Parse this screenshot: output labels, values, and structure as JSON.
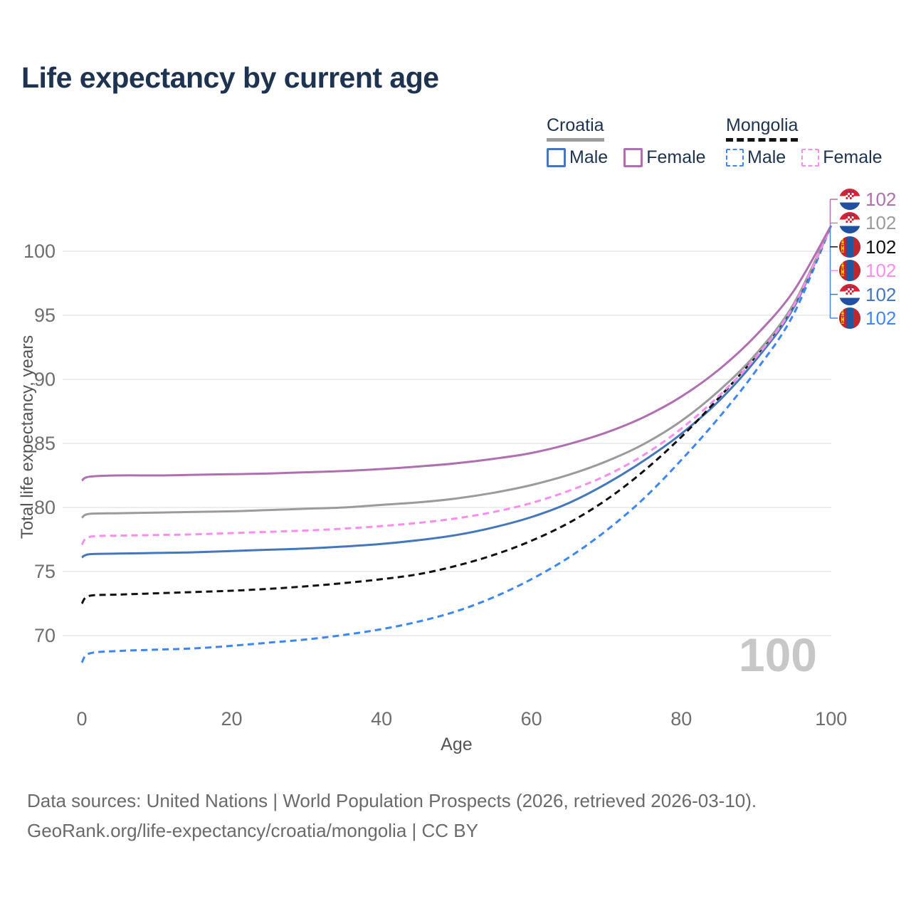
{
  "title": "Life expectancy by current age",
  "legend": {
    "croatia": {
      "title": "Croatia",
      "male": "Male",
      "female": "Female"
    },
    "mongolia": {
      "title": "Mongolia",
      "male": "Male",
      "female": "Female"
    }
  },
  "watermark": "100",
  "footer": {
    "line1": "Data sources: United Nations | World Population Prospects (2026, retrieved 2026-03-10).",
    "line2": "GeoRank.org/life-expectancy/croatia/mongolia | CC BY"
  },
  "colors": {
    "croatia_male": "#4477bb",
    "croatia_female": "#b06fb0",
    "croatia_all": "#9b9b9b",
    "mongolia_male": "#3d87f5",
    "mongolia_female": "#fb8df0",
    "mongolia_all": "#111111",
    "title_text": "#1d3350",
    "axis_text": "#6e6e6e",
    "gridline": "#e7e7e7",
    "watermark": "#c7c7c7"
  },
  "chart_data": {
    "type": "line",
    "title": "Life expectancy by current age",
    "xlabel": "Age",
    "ylabel": "Total life expectancy, years",
    "xlim": [
      0,
      100
    ],
    "ylim": [
      66.5,
      103.5
    ],
    "x_ticks": [
      0,
      20,
      40,
      60,
      80,
      100
    ],
    "y_ticks": [
      70,
      75,
      80,
      85,
      90,
      95,
      100
    ],
    "grid": "horizontal-only",
    "legend_position": "top-right",
    "ages": [
      0,
      1,
      5,
      10,
      15,
      20,
      25,
      30,
      35,
      40,
      45,
      50,
      55,
      60,
      65,
      70,
      75,
      80,
      85,
      90,
      95,
      100
    ],
    "series": [
      {
        "name": "Croatia Female",
        "country": "croatia",
        "sex": "female",
        "style": "solid",
        "color": "#b06fb0",
        "end_label": "102",
        "values": [
          82.1,
          82.4,
          82.5,
          82.5,
          82.55,
          82.6,
          82.65,
          82.75,
          82.85,
          83.0,
          83.2,
          83.45,
          83.8,
          84.25,
          84.95,
          85.85,
          87.05,
          88.65,
          90.75,
          93.45,
          96.9,
          102
        ]
      },
      {
        "name": "Croatia All",
        "country": "croatia",
        "sex": "all",
        "style": "solid",
        "color": "#9b9b9b",
        "end_label": "102",
        "values": [
          79.2,
          79.5,
          79.55,
          79.6,
          79.65,
          79.7,
          79.8,
          79.9,
          80.0,
          80.2,
          80.4,
          80.7,
          81.15,
          81.75,
          82.55,
          83.6,
          84.95,
          86.75,
          89.1,
          92.0,
          95.9,
          102
        ]
      },
      {
        "name": "Mongolia All",
        "country": "mongolia",
        "sex": "all",
        "style": "dashed",
        "color": "#111111",
        "end_label": "102",
        "values": [
          72.5,
          73.1,
          73.2,
          73.3,
          73.4,
          73.5,
          73.65,
          73.85,
          74.1,
          74.4,
          74.8,
          75.45,
          76.3,
          77.4,
          78.8,
          80.6,
          82.85,
          85.5,
          88.55,
          91.85,
          95.85,
          102
        ]
      },
      {
        "name": "Mongolia Female",
        "country": "mongolia",
        "sex": "female",
        "style": "dashed",
        "color": "#fb8df0",
        "end_label": "102",
        "values": [
          77.1,
          77.7,
          77.8,
          77.85,
          77.9,
          78.0,
          78.1,
          78.2,
          78.35,
          78.55,
          78.8,
          79.15,
          79.65,
          80.35,
          81.3,
          82.5,
          84.1,
          86.15,
          88.7,
          91.75,
          95.75,
          102
        ]
      },
      {
        "name": "Croatia Male",
        "country": "croatia",
        "sex": "male",
        "style": "solid",
        "color": "#4477bb",
        "end_label": "102",
        "values": [
          76.1,
          76.35,
          76.4,
          76.45,
          76.5,
          76.6,
          76.7,
          76.8,
          76.95,
          77.15,
          77.45,
          77.85,
          78.45,
          79.25,
          80.35,
          81.85,
          83.65,
          85.75,
          88.3,
          91.55,
          95.6,
          102
        ]
      },
      {
        "name": "Mongolia Male",
        "country": "mongolia",
        "sex": "male",
        "style": "dashed",
        "color": "#3d87f5",
        "end_label": "102",
        "values": [
          67.9,
          68.6,
          68.8,
          68.9,
          69.0,
          69.2,
          69.45,
          69.7,
          70.05,
          70.5,
          71.1,
          71.9,
          73.0,
          74.4,
          76.1,
          78.2,
          80.7,
          83.7,
          87.0,
          90.7,
          95.1,
          102
        ]
      }
    ]
  }
}
